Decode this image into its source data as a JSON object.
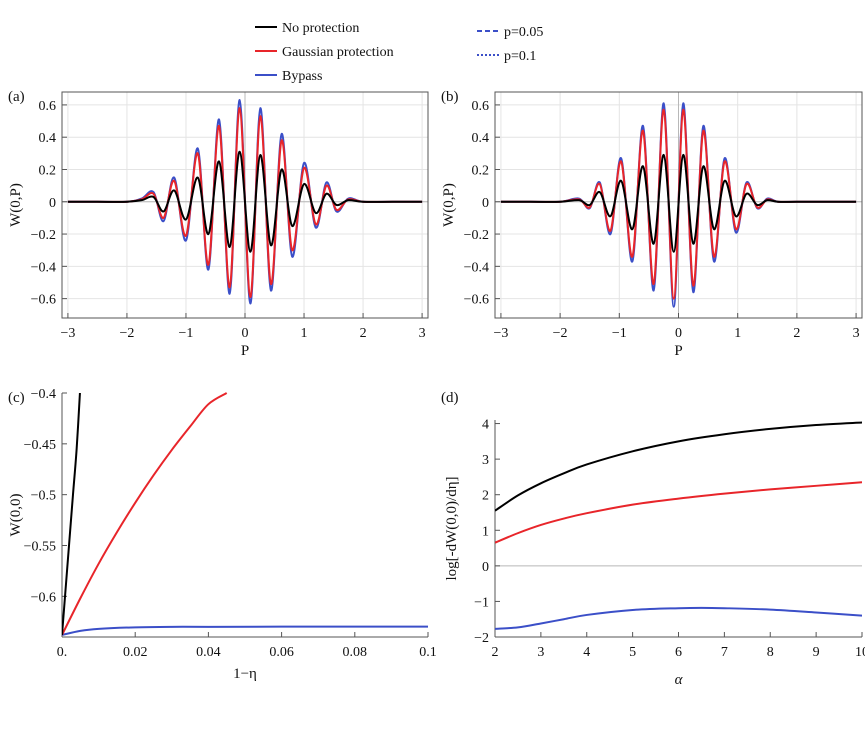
{
  "legend": {
    "items": [
      {
        "label": "No protection",
        "color": "#000000",
        "dash": "solid"
      },
      {
        "label": "Gaussian protection",
        "color": "#e8252a",
        "dash": "solid"
      },
      {
        "label": "Bypass",
        "color": "#3b4fc8",
        "dash": "solid"
      },
      {
        "label": "p=0.05",
        "color": "#3b4fc8",
        "dash": "dashed"
      },
      {
        "label": "p=0.1",
        "color": "#3b4fc8",
        "dash": "dotted"
      }
    ]
  },
  "chart_data": [
    {
      "panel_label": "(a)",
      "type": "line",
      "xlabel": "P",
      "ylabel": "W(0,P)",
      "xlim": [
        -3.1,
        3.1
      ],
      "ylim": [
        -0.72,
        0.68
      ],
      "xticks": [
        {
          "v": -3,
          "t": "−3"
        },
        {
          "v": -2,
          "t": "−2"
        },
        {
          "v": -1,
          "t": "−1"
        },
        {
          "v": 0,
          "t": "0"
        },
        {
          "v": 1,
          "t": "1"
        },
        {
          "v": 2,
          "t": "2"
        },
        {
          "v": 3,
          "t": "3"
        }
      ],
      "yticks": [
        {
          "v": -0.6,
          "t": "−0.6"
        },
        {
          "v": -0.4,
          "t": "−0.4"
        },
        {
          "v": -0.2,
          "t": "−0.2"
        },
        {
          "v": 0,
          "t": "0"
        },
        {
          "v": 0.2,
          "t": "0.2"
        },
        {
          "v": 0.4,
          "t": "0.4"
        },
        {
          "v": 0.6,
          "t": "0.6"
        }
      ],
      "grid": true,
      "series": [
        {
          "color": "#3b4fc8",
          "x": [
            -3,
            -2.5,
            -2,
            -1.75,
            -1.55,
            -1.38,
            -1.2,
            -1.0,
            -0.8,
            -0.62,
            -0.44,
            -0.26,
            -0.09,
            0.09,
            0.26,
            0.44,
            0.62,
            0.8,
            1.0,
            1.2,
            1.38,
            1.55,
            1.75,
            2,
            2.5,
            3
          ],
          "y": [
            0,
            0,
            0,
            0.02,
            0.06,
            -0.12,
            0.15,
            -0.24,
            0.33,
            -0.42,
            0.51,
            -0.57,
            0.63,
            -0.63,
            0.58,
            -0.55,
            0.42,
            -0.34,
            0.24,
            -0.16,
            0.12,
            -0.06,
            0.02,
            0,
            0,
            0
          ]
        },
        {
          "color": "#e8252a",
          "x": [
            -3,
            -2.5,
            -2,
            -1.75,
            -1.55,
            -1.38,
            -1.2,
            -1.0,
            -0.8,
            -0.62,
            -0.44,
            -0.26,
            -0.09,
            0.09,
            0.26,
            0.44,
            0.62,
            0.8,
            1.0,
            1.2,
            1.38,
            1.55,
            1.75,
            2,
            2.5,
            3
          ],
          "y": [
            0,
            0,
            0,
            0.015,
            0.05,
            -0.1,
            0.13,
            -0.21,
            0.3,
            -0.39,
            0.47,
            -0.53,
            0.58,
            -0.59,
            0.53,
            -0.51,
            0.38,
            -0.3,
            0.21,
            -0.14,
            0.1,
            -0.05,
            0.015,
            0,
            0,
            0
          ]
        },
        {
          "color": "#000000",
          "x": [
            -3,
            -2.5,
            -2,
            -1.75,
            -1.55,
            -1.38,
            -1.2,
            -1.0,
            -0.8,
            -0.62,
            -0.44,
            -0.26,
            -0.09,
            0.09,
            0.26,
            0.44,
            0.62,
            0.8,
            1.0,
            1.2,
            1.38,
            1.55,
            1.75,
            2,
            2.5,
            3
          ],
          "y": [
            0,
            0,
            0,
            0.01,
            0.03,
            -0.06,
            0.07,
            -0.11,
            0.15,
            -0.2,
            0.25,
            -0.28,
            0.31,
            -0.31,
            0.29,
            -0.27,
            0.2,
            -0.15,
            0.11,
            -0.07,
            0.05,
            -0.02,
            0.01,
            0,
            0,
            0
          ]
        }
      ]
    },
    {
      "panel_label": "(b)",
      "type": "line",
      "xlabel": "P",
      "ylabel": "W(0,P)",
      "xlim": [
        -3.1,
        3.1
      ],
      "ylim": [
        -0.72,
        0.68
      ],
      "xticks": [
        {
          "v": -3,
          "t": "−3"
        },
        {
          "v": -2,
          "t": "−2"
        },
        {
          "v": -1,
          "t": "−1"
        },
        {
          "v": 0,
          "t": "0"
        },
        {
          "v": 1,
          "t": "1"
        },
        {
          "v": 2,
          "t": "2"
        },
        {
          "v": 3,
          "t": "3"
        }
      ],
      "yticks": [
        {
          "v": -0.6,
          "t": "−0.6"
        },
        {
          "v": -0.4,
          "t": "−0.4"
        },
        {
          "v": -0.2,
          "t": "−0.2"
        },
        {
          "v": 0,
          "t": "0"
        },
        {
          "v": 0.2,
          "t": "0.2"
        },
        {
          "v": 0.4,
          "t": "0.4"
        },
        {
          "v": 0.6,
          "t": "0.6"
        }
      ],
      "grid": true,
      "series": [
        {
          "color": "#3b4fc8",
          "x": [
            -3,
            -2.5,
            -2,
            -1.68,
            -1.5,
            -1.33,
            -1.15,
            -0.97,
            -0.78,
            -0.6,
            -0.42,
            -0.25,
            -0.08,
            0.08,
            0.25,
            0.42,
            0.6,
            0.78,
            0.97,
            1.15,
            1.33,
            1.5,
            1.68,
            2,
            2.5,
            3
          ],
          "y": [
            0,
            0,
            0,
            0.02,
            -0.04,
            0.12,
            -0.2,
            0.27,
            -0.37,
            0.47,
            -0.55,
            0.61,
            -0.65,
            0.61,
            -0.56,
            0.47,
            -0.37,
            0.27,
            -0.19,
            0.12,
            -0.04,
            0.02,
            0,
            0,
            0,
            0
          ]
        },
        {
          "color": "#e8252a",
          "x": [
            -3,
            -2.5,
            -2,
            -1.68,
            -1.5,
            -1.33,
            -1.15,
            -0.97,
            -0.78,
            -0.6,
            -0.42,
            -0.25,
            -0.08,
            0.08,
            0.25,
            0.42,
            0.6,
            0.78,
            0.97,
            1.15,
            1.33,
            1.5,
            1.68,
            2,
            2.5,
            3
          ],
          "y": [
            0,
            0,
            0,
            0.015,
            -0.035,
            0.11,
            -0.18,
            0.25,
            -0.34,
            0.44,
            -0.51,
            0.57,
            -0.6,
            0.57,
            -0.52,
            0.44,
            -0.34,
            0.25,
            -0.17,
            0.11,
            -0.035,
            0.015,
            0,
            0,
            0,
            0
          ]
        },
        {
          "color": "#000000",
          "x": [
            -3,
            -2.5,
            -2,
            -1.68,
            -1.5,
            -1.33,
            -1.15,
            -0.97,
            -0.78,
            -0.6,
            -0.42,
            -0.25,
            -0.08,
            0.08,
            0.25,
            0.42,
            0.6,
            0.78,
            0.97,
            1.15,
            1.33,
            1.5,
            1.68,
            2,
            2.5,
            3
          ],
          "y": [
            0,
            0,
            0,
            0.01,
            -0.02,
            0.06,
            -0.09,
            0.13,
            -0.17,
            0.22,
            -0.26,
            0.29,
            -0.31,
            0.29,
            -0.26,
            0.22,
            -0.17,
            0.13,
            -0.09,
            0.05,
            -0.02,
            0.01,
            0,
            0,
            0,
            0
          ]
        }
      ]
    },
    {
      "panel_label": "(c)",
      "type": "line",
      "xlabel": "1−η",
      "ylabel": "W(0,0)",
      "xlim": [
        0,
        0.1
      ],
      "ylim": [
        -0.64,
        -0.4
      ],
      "xticks": [
        {
          "v": 0,
          "t": "0."
        },
        {
          "v": 0.02,
          "t": "0.02"
        },
        {
          "v": 0.04,
          "t": "0.04"
        },
        {
          "v": 0.06,
          "t": "0.06"
        },
        {
          "v": 0.08,
          "t": "0.08"
        },
        {
          "v": 0.1,
          "t": "0.1"
        }
      ],
      "yticks": [
        {
          "v": -0.6,
          "t": "−0.6"
        },
        {
          "v": -0.55,
          "t": "−0.55"
        },
        {
          "v": -0.5,
          "t": "−0.5"
        },
        {
          "v": -0.45,
          "t": "−0.45"
        },
        {
          "v": -0.4,
          "t": "−0.4"
        }
      ],
      "grid": false,
      "series": [
        {
          "color": "#3b4fc8",
          "x": [
            0,
            0.005,
            0.01,
            0.02,
            0.03,
            0.04,
            0.06,
            0.08,
            0.1
          ],
          "y": [
            -0.638,
            -0.634,
            -0.632,
            -0.6305,
            -0.63,
            -0.63,
            -0.6298,
            -0.6298,
            -0.6298
          ]
        },
        {
          "color": "#e8252a",
          "x": [
            0,
            0.005,
            0.01,
            0.015,
            0.02,
            0.025,
            0.03,
            0.035,
            0.04,
            0.045
          ],
          "y": [
            -0.638,
            -0.602,
            -0.568,
            -0.537,
            -0.508,
            -0.481,
            -0.456,
            -0.433,
            -0.411,
            -0.4
          ]
        },
        {
          "color": "#000000",
          "x": [
            0,
            0.001,
            0.002,
            0.003,
            0.004,
            0.0049
          ],
          "y": [
            -0.638,
            -0.592,
            -0.546,
            -0.5,
            -0.455,
            -0.4
          ]
        }
      ]
    },
    {
      "panel_label": "(d)",
      "type": "line",
      "xlabel": "α",
      "ylabel": "log[-dW(0,0)/dη]",
      "xlim": [
        2,
        10
      ],
      "ylim": [
        -2,
        4.1
      ],
      "xticks": [
        {
          "v": 2,
          "t": "2"
        },
        {
          "v": 3,
          "t": "3"
        },
        {
          "v": 4,
          "t": "4"
        },
        {
          "v": 5,
          "t": "5"
        },
        {
          "v": 6,
          "t": "6"
        },
        {
          "v": 7,
          "t": "7"
        },
        {
          "v": 8,
          "t": "8"
        },
        {
          "v": 9,
          "t": "9"
        },
        {
          "v": 10,
          "t": "10"
        }
      ],
      "yticks": [
        {
          "v": -2,
          "t": "−2"
        },
        {
          "v": -1,
          "t": "−1"
        },
        {
          "v": 0,
          "t": "0"
        },
        {
          "v": 1,
          "t": "1"
        },
        {
          "v": 2,
          "t": "2"
        },
        {
          "v": 3,
          "t": "3"
        },
        {
          "v": 4,
          "t": "4"
        }
      ],
      "grid": false,
      "series": [
        {
          "color": "#000000",
          "x": [
            2,
            2.5,
            3,
            3.5,
            4,
            5,
            6,
            7,
            8,
            9,
            10
          ],
          "y": [
            1.55,
            1.98,
            2.32,
            2.6,
            2.85,
            3.22,
            3.5,
            3.7,
            3.85,
            3.96,
            4.03
          ]
        },
        {
          "color": "#e8252a",
          "x": [
            2,
            2.5,
            3,
            3.5,
            4,
            5,
            6,
            7,
            8,
            9,
            10
          ],
          "y": [
            0.65,
            0.92,
            1.15,
            1.33,
            1.48,
            1.72,
            1.89,
            2.03,
            2.15,
            2.25,
            2.35
          ]
        },
        {
          "color": "#3b4fc8",
          "x": [
            2,
            2.5,
            3,
            3.5,
            4,
            5,
            6,
            6.5,
            7,
            8,
            9,
            10
          ],
          "y": [
            -1.77,
            -1.73,
            -1.62,
            -1.5,
            -1.38,
            -1.24,
            -1.19,
            -1.18,
            -1.19,
            -1.23,
            -1.31,
            -1.4
          ]
        }
      ]
    }
  ]
}
